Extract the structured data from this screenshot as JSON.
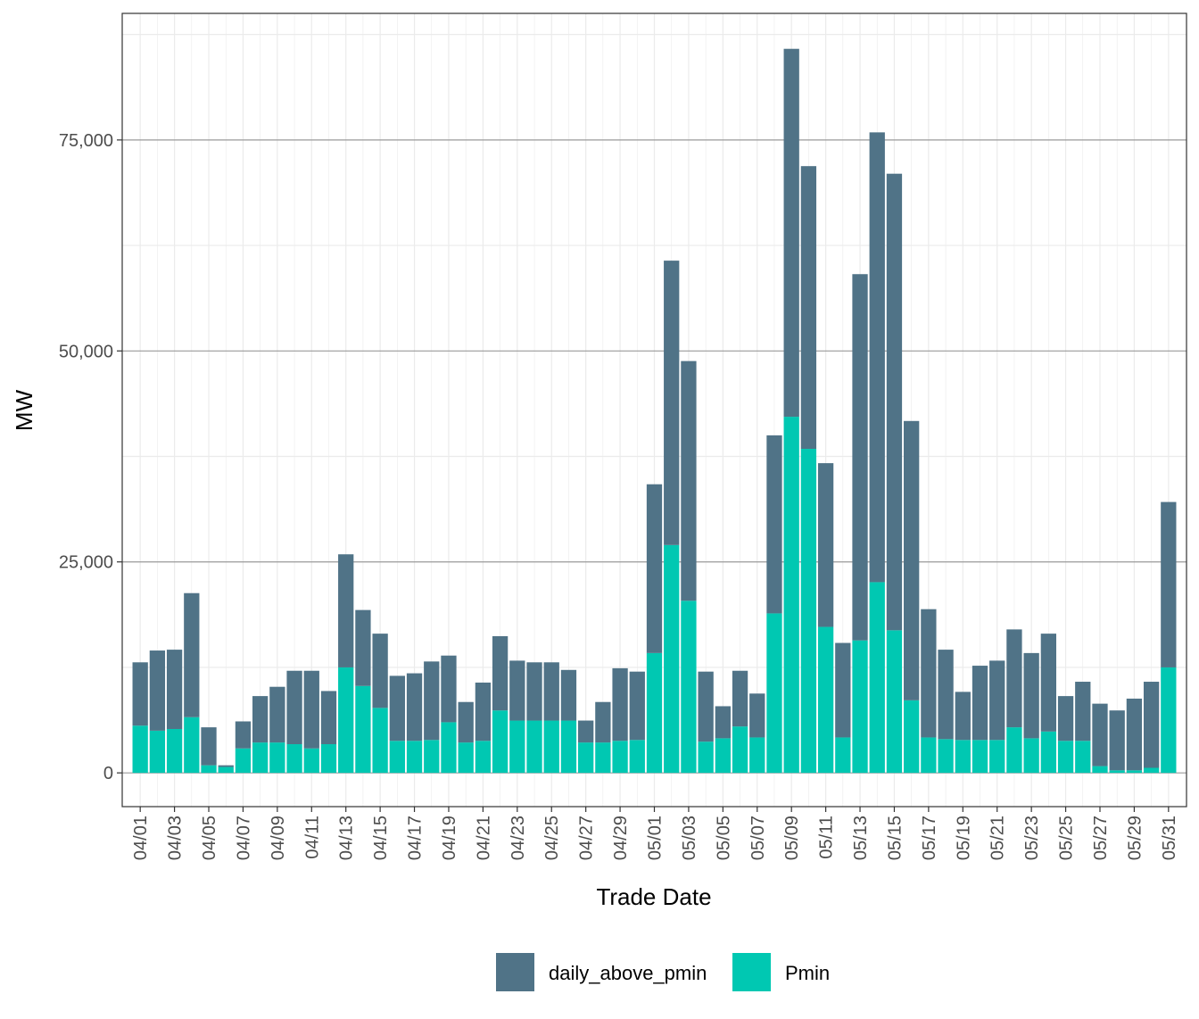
{
  "chart_data": {
    "type": "bar",
    "stacked": true,
    "title": "",
    "xlabel": "Trade Date",
    "ylabel": "MW",
    "ylim": [
      -4000,
      90000
    ],
    "y_ticks": [
      0,
      25000,
      50000,
      75000
    ],
    "y_tick_labels": [
      "0",
      "25,000",
      "50,000",
      "75,000"
    ],
    "grid": true,
    "legend_position": "bottom",
    "categories": [
      "04/01",
      "04/02",
      "04/03",
      "04/04",
      "04/05",
      "04/06",
      "04/07",
      "04/08",
      "04/09",
      "04/10",
      "04/11",
      "04/12",
      "04/13",
      "04/14",
      "04/15",
      "04/16",
      "04/17",
      "04/18",
      "04/19",
      "04/20",
      "04/21",
      "04/22",
      "04/23",
      "04/24",
      "04/25",
      "04/26",
      "04/27",
      "04/28",
      "04/29",
      "04/30",
      "05/01",
      "05/02",
      "05/03",
      "05/04",
      "05/05",
      "05/06",
      "05/07",
      "05/08",
      "05/09",
      "05/10",
      "05/11",
      "05/12",
      "05/13",
      "05/14",
      "05/15",
      "05/16",
      "05/17",
      "05/18",
      "05/19",
      "05/20",
      "05/21",
      "05/22",
      "05/23",
      "05/24",
      "05/25",
      "05/26",
      "05/27",
      "05/28",
      "05/29",
      "05/30",
      "05/31"
    ],
    "x_tick_labels": [
      "04/01",
      "04/03",
      "04/05",
      "04/07",
      "04/09",
      "04/11",
      "04/13",
      "04/15",
      "04/17",
      "04/19",
      "04/21",
      "04/23",
      "04/25",
      "04/27",
      "04/29",
      "05/01",
      "05/03",
      "05/05",
      "05/07",
      "05/09",
      "05/11",
      "05/13",
      "05/15",
      "05/17",
      "05/19",
      "05/21",
      "05/23",
      "05/25",
      "05/27",
      "05/29",
      "05/31"
    ],
    "series": [
      {
        "name": "Pmin",
        "color": "#00c8b2",
        "values": [
          5600,
          5000,
          5200,
          6600,
          900,
          700,
          2900,
          3600,
          3600,
          3400,
          2900,
          3400,
          12500,
          10300,
          7700,
          3800,
          3800,
          3900,
          6000,
          3600,
          3800,
          7400,
          6200,
          6200,
          6200,
          6200,
          3600,
          3600,
          3800,
          3900,
          14200,
          27000,
          20400,
          3700,
          4100,
          5500,
          4200,
          18900,
          42200,
          38400,
          17300,
          4200,
          15700,
          22600,
          16900,
          8600,
          4200,
          4000,
          3900,
          3900,
          3900,
          5400,
          4100,
          4900,
          3800,
          3800,
          800,
          300,
          300,
          600,
          12500
        ]
      },
      {
        "name": "daily_above_pmin",
        "color": "#507387",
        "values": [
          7500,
          9500,
          9400,
          14700,
          4500,
          200,
          3200,
          5500,
          6600,
          8700,
          9200,
          6300,
          13400,
          9000,
          8800,
          7700,
          8000,
          9300,
          7900,
          4800,
          6900,
          8800,
          7100,
          6900,
          6900,
          6000,
          2600,
          4800,
          8600,
          8100,
          20000,
          33700,
          28400,
          8300,
          3800,
          6600,
          5200,
          21100,
          43600,
          33500,
          19400,
          11200,
          43400,
          53300,
          54100,
          33100,
          15200,
          10600,
          5700,
          8800,
          9400,
          11600,
          10100,
          11600,
          5300,
          7000,
          7400,
          7100,
          8500,
          10200,
          19600
        ]
      }
    ]
  }
}
